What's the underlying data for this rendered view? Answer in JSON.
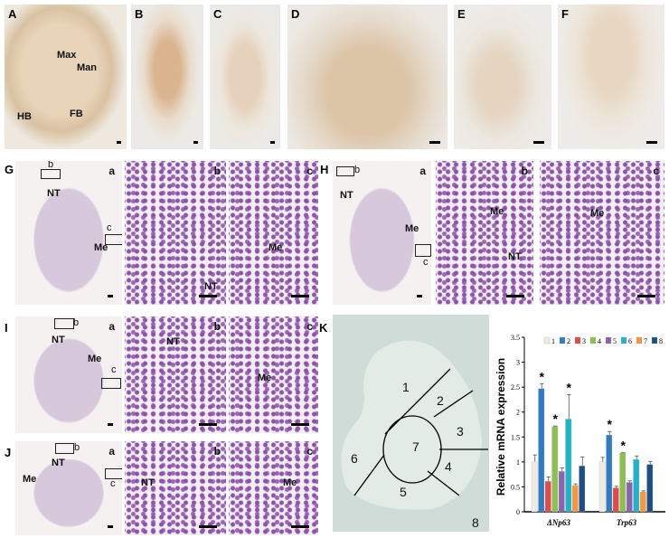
{
  "panels": {
    "A": {
      "letter": "A",
      "labels": [
        "Max",
        "Man",
        "HB",
        "FB"
      ]
    },
    "B": {
      "letter": "B"
    },
    "C": {
      "letter": "C"
    },
    "D": {
      "letter": "D"
    },
    "E": {
      "letter": "E"
    },
    "F": {
      "letter": "F"
    },
    "G": {
      "letter": "G",
      "sub": [
        "a",
        "b",
        "c"
      ],
      "box_labels": [
        "b",
        "c"
      ],
      "labels": [
        "NT",
        "Me",
        "NT",
        "Me"
      ]
    },
    "H": {
      "letter": "H",
      "sub": [
        "a",
        "b",
        "c"
      ],
      "box_labels": [
        "b",
        "c"
      ],
      "labels": [
        "NT",
        "Me",
        "Me",
        "NT",
        "Me"
      ]
    },
    "I": {
      "letter": "I",
      "sub": [
        "a",
        "b",
        "c"
      ],
      "box_labels": [
        "b",
        "c"
      ],
      "labels": [
        "NT",
        "Me",
        "NT",
        "Me"
      ]
    },
    "J": {
      "letter": "J",
      "sub": [
        "a",
        "b",
        "c"
      ],
      "box_labels": [
        "b",
        "c"
      ],
      "labels": [
        "NT",
        "Me",
        "NT",
        "Me"
      ]
    },
    "K": {
      "letter": "K",
      "regions": [
        "1",
        "2",
        "3",
        "4",
        "5",
        "6",
        "7",
        "8"
      ]
    }
  },
  "chart_data": {
    "type": "bar",
    "categories": [
      "ΔNp63",
      "Trp63"
    ],
    "ylabel": "Relative mRNA expression",
    "ylim": [
      0,
      3.5
    ],
    "yticks": [
      "0",
      "0.5",
      "1",
      "1.5",
      "2",
      "2.5",
      "3",
      "3.5"
    ],
    "legend_position": "top",
    "series": [
      {
        "name": "1",
        "color": "#eeebe0",
        "values": [
          1.0,
          1.0
        ],
        "errors": [
          0.14,
          0.09
        ],
        "sig": [
          false,
          false
        ]
      },
      {
        "name": "2",
        "color": "#2e7cc4",
        "values": [
          2.47,
          1.54
        ],
        "errors": [
          0.1,
          0.07
        ],
        "sig": [
          true,
          true
        ]
      },
      {
        "name": "3",
        "color": "#df4a4a",
        "values": [
          0.61,
          0.48
        ],
        "errors": [
          0.09,
          0.03
        ],
        "sig": [
          false,
          false
        ]
      },
      {
        "name": "4",
        "color": "#8dc04e",
        "values": [
          1.71,
          1.18
        ],
        "errors": [
          0.01,
          0.01
        ],
        "sig": [
          true,
          true
        ]
      },
      {
        "name": "5",
        "color": "#8b63ad",
        "values": [
          0.81,
          0.59
        ],
        "errors": [
          0.07,
          0.03
        ],
        "sig": [
          false,
          false
        ]
      },
      {
        "name": "6",
        "color": "#1fb4cc",
        "values": [
          1.86,
          1.05
        ],
        "errors": [
          0.49,
          0.07
        ],
        "sig": [
          true,
          false
        ]
      },
      {
        "name": "7",
        "color": "#f7963d",
        "values": [
          0.53,
          0.4
        ],
        "errors": [
          0.03,
          0.02
        ],
        "sig": [
          false,
          false
        ]
      },
      {
        "name": "8",
        "color": "#1c4f86",
        "values": [
          0.92,
          0.95
        ],
        "errors": [
          0.18,
          0.06
        ],
        "sig": [
          false,
          false
        ]
      }
    ],
    "sig_marker": "*"
  }
}
